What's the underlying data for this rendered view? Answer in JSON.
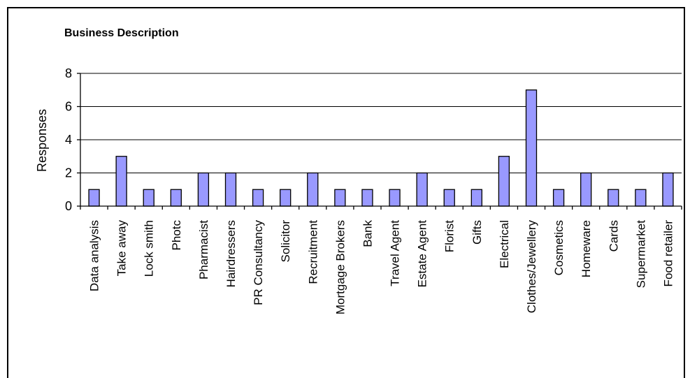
{
  "chart_data": {
    "type": "bar",
    "title": "Business Description",
    "ylabel": "Responses",
    "xlabel": "",
    "ylim": [
      0,
      8
    ],
    "yticks": [
      0,
      2,
      4,
      6,
      8
    ],
    "grid": true,
    "bar_color": "#9999FF",
    "categories": [
      "Data analysis",
      "Take away",
      "Lock smith",
      "Photc",
      "Pharmacist",
      "Hairdressers",
      "PR Consultancy",
      "Solicitor",
      "Recruitment",
      "Mortgage Brokers",
      "Bank",
      "Travel Agent",
      "Estate Agent",
      "Florist",
      "Gifts",
      "Electrical",
      "Clothes/Jewellery",
      "Cosmetics",
      "Homeware",
      "Cards",
      "Supermarket",
      "Food retailer"
    ],
    "values": [
      1,
      3,
      1,
      1,
      2,
      2,
      1,
      1,
      2,
      1,
      1,
      1,
      2,
      1,
      1,
      3,
      7,
      1,
      2,
      1,
      1,
      2
    ]
  }
}
